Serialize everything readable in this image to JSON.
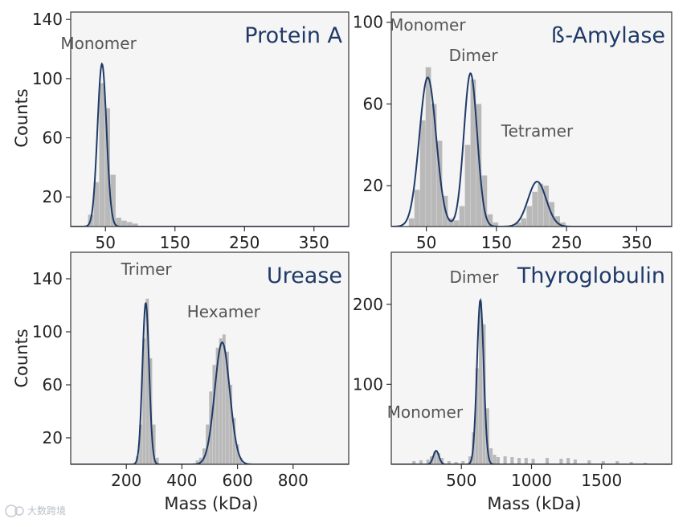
{
  "chart_data": [
    {
      "type": "histogram",
      "title": "Protein A",
      "xlabel": "",
      "ylabel": "Counts",
      "xlim": [
        0,
        400
      ],
      "ylim": [
        0,
        145
      ],
      "xticks": [
        50,
        150,
        250,
        350
      ],
      "yticks": [
        20,
        60,
        100,
        140
      ],
      "bin_width": 8,
      "bins": [
        [
          25,
          8
        ],
        [
          33,
          30
        ],
        [
          41,
          97
        ],
        [
          49,
          80
        ],
        [
          57,
          35
        ],
        [
          65,
          6
        ],
        [
          73,
          4
        ],
        [
          81,
          3
        ],
        [
          89,
          2
        ]
      ],
      "fit": [
        {
          "mean": 45,
          "sd": 6.5,
          "amp": 110
        }
      ],
      "annotations": [
        {
          "label": "Monomer",
          "x": 40,
          "y": 120
        }
      ]
    },
    {
      "type": "histogram",
      "title": "ß-Amylase",
      "xlabel": "",
      "ylabel": "",
      "xlim": [
        0,
        400
      ],
      "ylim": [
        0,
        105
      ],
      "xticks": [
        50,
        150,
        250,
        350
      ],
      "yticks": [
        20,
        60,
        100
      ],
      "bin_width": 8,
      "bins": [
        [
          25,
          4
        ],
        [
          33,
          18
        ],
        [
          41,
          52
        ],
        [
          49,
          78
        ],
        [
          57,
          60
        ],
        [
          65,
          42
        ],
        [
          73,
          15
        ],
        [
          81,
          4
        ],
        [
          89,
          3
        ],
        [
          97,
          10
        ],
        [
          105,
          40
        ],
        [
          113,
          72
        ],
        [
          121,
          60
        ],
        [
          129,
          25
        ],
        [
          137,
          6
        ],
        [
          145,
          2
        ],
        [
          177,
          2
        ],
        [
          185,
          4
        ],
        [
          193,
          10
        ],
        [
          201,
          17
        ],
        [
          209,
          21
        ],
        [
          217,
          20
        ],
        [
          225,
          12
        ],
        [
          233,
          5
        ],
        [
          241,
          2
        ]
      ],
      "fit": [
        {
          "mean": 52,
          "sd": 12,
          "amp": 73
        },
        {
          "mean": 113,
          "sd": 9.5,
          "amp": 75
        },
        {
          "mean": 208,
          "sd": 13,
          "amp": 22
        }
      ],
      "annotations": [
        {
          "label": "Monomer",
          "x": 52,
          "y": 96
        },
        {
          "label": "Dimer",
          "x": 117,
          "y": 81
        },
        {
          "label": "Tetramer",
          "x": 208,
          "y": 44
        }
      ]
    },
    {
      "type": "histogram",
      "title": "Urease",
      "xlabel": "",
      "ylabel": "Counts",
      "xlim": [
        0,
        1000
      ],
      "ylim": [
        0,
        160
      ],
      "xticks": [
        200,
        400,
        600,
        800
      ],
      "yticks": [
        20,
        60,
        100,
        140
      ],
      "bin_width": 12,
      "bins": [
        [
          234,
          6
        ],
        [
          246,
          30
        ],
        [
          258,
          95
        ],
        [
          270,
          125
        ],
        [
          282,
          80
        ],
        [
          294,
          30
        ],
        [
          306,
          5
        ],
        [
          450,
          3
        ],
        [
          462,
          5
        ],
        [
          474,
          12
        ],
        [
          486,
          30
        ],
        [
          498,
          55
        ],
        [
          510,
          75
        ],
        [
          522,
          88
        ],
        [
          534,
          95
        ],
        [
          546,
          98
        ],
        [
          558,
          85
        ],
        [
          570,
          60
        ],
        [
          582,
          35
        ],
        [
          594,
          15
        ],
        [
          606,
          5
        ]
      ],
      "fit": [
        {
          "mean": 270,
          "sd": 12,
          "amp": 122
        },
        {
          "mean": 545,
          "sd": 27,
          "amp": 92
        }
      ],
      "annotations": [
        {
          "label": "Trimer",
          "x": 272,
          "y": 143
        },
        {
          "label": "Hexamer",
          "x": 550,
          "y": 111
        }
      ]
    },
    {
      "type": "histogram",
      "title": "Thyroglobulin",
      "xlabel": "Mass (kDa)",
      "ylabel": "",
      "xlim": [
        0,
        2000
      ],
      "ylim": [
        0,
        265
      ],
      "xticks": [
        500,
        1000,
        1500
      ],
      "yticks": [
        100,
        200
      ],
      "bin_width": 25,
      "bins": [
        [
          150,
          4
        ],
        [
          200,
          5
        ],
        [
          250,
          6
        ],
        [
          275,
          10
        ],
        [
          300,
          16
        ],
        [
          325,
          14
        ],
        [
          350,
          8
        ],
        [
          400,
          4
        ],
        [
          450,
          3
        ],
        [
          500,
          4
        ],
        [
          550,
          10
        ],
        [
          575,
          40
        ],
        [
          600,
          120
        ],
        [
          625,
          205
        ],
        [
          650,
          175
        ],
        [
          675,
          70
        ],
        [
          700,
          20
        ],
        [
          725,
          12
        ],
        [
          750,
          9
        ],
        [
          800,
          10
        ],
        [
          850,
          9
        ],
        [
          900,
          8
        ],
        [
          950,
          8
        ],
        [
          1000,
          7
        ],
        [
          1100,
          8
        ],
        [
          1200,
          7
        ],
        [
          1250,
          8
        ],
        [
          1300,
          6
        ],
        [
          1400,
          5
        ],
        [
          1500,
          4
        ],
        [
          1600,
          4
        ],
        [
          1700,
          3
        ],
        [
          1800,
          2
        ]
      ],
      "fit": [
        {
          "mean": 320,
          "sd": 20,
          "amp": 17
        },
        {
          "mean": 635,
          "sd": 24,
          "amp": 205
        }
      ],
      "annotations": [
        {
          "label": "Monomer",
          "x": 240,
          "y": 58
        },
        {
          "label": "Dimer",
          "x": 590,
          "y": 227
        }
      ]
    }
  ],
  "shared": {
    "xlabel": "Mass (kDa)"
  },
  "watermark": "大数跨境",
  "colors": {
    "bar": "#b9b9b9",
    "fit": "#1f3a68",
    "panel_bg": "#f5f5f5",
    "axes": "#333333",
    "title": "#1f3a68"
  }
}
